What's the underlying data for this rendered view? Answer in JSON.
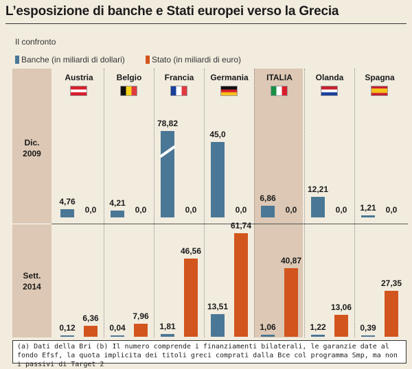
{
  "title": "L’esposizione di banche e Stati europei verso la Grecia",
  "subtitle": "Il confronto",
  "colors": {
    "banks": "#4a7795",
    "state": "#d2551e",
    "panel": "#dcc8b4",
    "background": "#f2ecdf"
  },
  "chart_data": {
    "type": "bar",
    "categories": [
      "Austria",
      "Belgio",
      "Francia",
      "Germania",
      "ITALIA",
      "Olanda",
      "Spagna"
    ],
    "highlight_category": "ITALIA",
    "legend": {
      "placement": "top-left",
      "banks_label": "Banche (in miliardi di dollari)",
      "state_label": "Stato (in miliardi di euro)"
    },
    "rows": [
      {
        "label_line1": "Dic.",
        "label_line2": "2009",
        "series": [
          {
            "key": "banks",
            "values": [
              4.76,
              4.21,
              78.82,
              45.0,
              6.86,
              12.21,
              1.21
            ],
            "labels": [
              "4,76",
              "4,21",
              "78,82",
              "45,0",
              "6,86",
              "12,21",
              "1,21"
            ]
          },
          {
            "key": "state",
            "values": [
              0,
              0,
              0,
              0,
              0,
              0,
              0
            ],
            "labels": [
              "0,0",
              "0,0",
              "0,0",
              "0,0",
              "0,0",
              "0,0",
              "0,0"
            ]
          }
        ],
        "broken_axis_category": "Francia"
      },
      {
        "label_line1": "Sett.",
        "label_line2": "2014",
        "series": [
          {
            "key": "banks",
            "values": [
              0.12,
              0.04,
              1.81,
              13.51,
              1.06,
              1.22,
              0.39
            ],
            "labels": [
              "0,12",
              "0,04",
              "1,81",
              "13,51",
              "1,06",
              "1,22",
              "0,39"
            ]
          },
          {
            "key": "state",
            "values": [
              6.36,
              7.96,
              46.56,
              61.74,
              40.87,
              13.06,
              27.35
            ],
            "labels": [
              "6,36",
              "7,96",
              "46,56",
              "61,74",
              "40,87",
              "13,06",
              "27,35"
            ]
          }
        ]
      }
    ]
  },
  "flags": [
    {
      "country": "Austria",
      "stripes": "horizontal",
      "colors": [
        "#d81e2a",
        "#ffffff",
        "#d81e2a"
      ]
    },
    {
      "country": "Belgio",
      "stripes": "vertical",
      "colors": [
        "#111111",
        "#f6d21b",
        "#e03a3e"
      ]
    },
    {
      "country": "Francia",
      "stripes": "vertical",
      "colors": [
        "#1b3f9b",
        "#ffffff",
        "#e03a3e"
      ]
    },
    {
      "country": "Germania",
      "stripes": "horizontal",
      "colors": [
        "#111111",
        "#d81e2a",
        "#f6c21b"
      ]
    },
    {
      "country": "ITALIA",
      "stripes": "vertical",
      "colors": [
        "#1a8f45",
        "#ffffff",
        "#d81e2a"
      ]
    },
    {
      "country": "Olanda",
      "stripes": "horizontal",
      "colors": [
        "#c8202f",
        "#ffffff",
        "#1b3f9b"
      ]
    },
    {
      "country": "Spagna",
      "stripes": "spain",
      "colors": [
        "#c8202f",
        "#f6c21b",
        "#c8202f"
      ]
    }
  ],
  "note": "(a) Dati della Bri (b) Il numero comprende i finanziamenti bilaterali, le garanzie date al fondo Efsf, la quota implicita dei titoli greci comprati dalla Bce col programma Smp, ma non i passivi di Target 2"
}
